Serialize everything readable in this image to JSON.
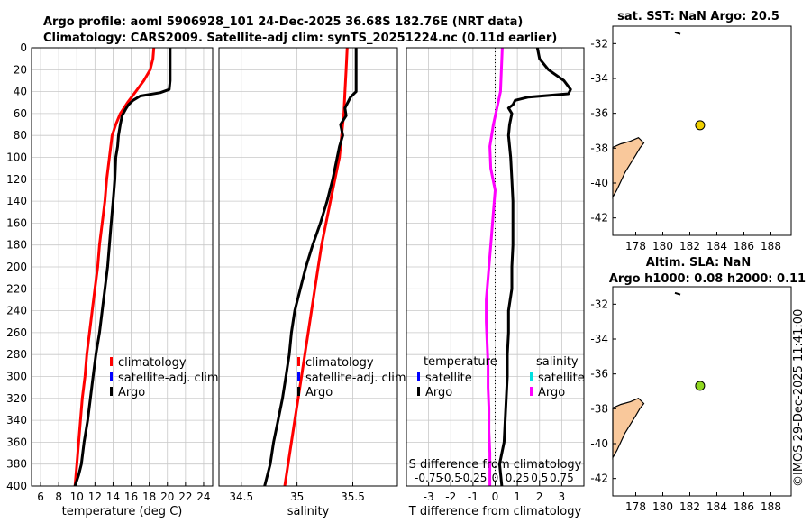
{
  "header": {
    "line1": "Argo profile: aoml 5906928_101 24-Dec-2025 36.68S 182.76E (NRT data)",
    "line2": "Climatology: CARS2009. Satellite-adj clim: synTS_20251224.nc (0.11d earlier)"
  },
  "colors": {
    "climatology": "#ff0000",
    "satellite_adj": "#0000ff",
    "argo": "#000000",
    "satellite_s": "#00e0e0",
    "salinity_diff": "#ff00ff",
    "land": "#f9c89b",
    "marker_sst": "#f0d000",
    "marker_sla": "#90d820"
  },
  "chart_data": [
    {
      "type": "line",
      "name": "temperature",
      "xlabel": "temperature (deg C)",
      "ylabel": "",
      "xlim": [
        5,
        25
      ],
      "ylim": [
        400,
        0
      ],
      "xticks": [
        "6",
        "8",
        "10",
        "12",
        "14",
        "16",
        "18",
        "20",
        "22",
        "24"
      ],
      "xtick_values": [
        6,
        8,
        10,
        12,
        14,
        16,
        18,
        20,
        22,
        24
      ],
      "yticks": [
        "0",
        "20",
        "40",
        "60",
        "80",
        "100",
        "120",
        "140",
        "160",
        "180",
        "200",
        "220",
        "240",
        "260",
        "280",
        "300",
        "320",
        "340",
        "360",
        "380",
        "400"
      ],
      "ytick_values": [
        0,
        20,
        40,
        60,
        80,
        100,
        120,
        140,
        160,
        180,
        200,
        220,
        240,
        260,
        280,
        300,
        320,
        340,
        360,
        380,
        400
      ],
      "legend": [
        "climatology",
        "satellite-adj. clim",
        "Argo"
      ],
      "series": [
        {
          "name": "climatology",
          "points": [
            [
              18.5,
              0
            ],
            [
              18.4,
              10
            ],
            [
              18.1,
              20
            ],
            [
              17.4,
              30
            ],
            [
              16.5,
              40
            ],
            [
              15.6,
              50
            ],
            [
              14.8,
              60
            ],
            [
              14.3,
              70
            ],
            [
              13.9,
              80
            ],
            [
              13.6,
              100
            ],
            [
              13.3,
              120
            ],
            [
              13.1,
              140
            ],
            [
              12.8,
              160
            ],
            [
              12.5,
              180
            ],
            [
              12.3,
              200
            ],
            [
              12.0,
              220
            ],
            [
              11.7,
              240
            ],
            [
              11.4,
              260
            ],
            [
              11.1,
              280
            ],
            [
              10.9,
              300
            ],
            [
              10.6,
              320
            ],
            [
              10.4,
              340
            ],
            [
              10.2,
              360
            ],
            [
              10.0,
              380
            ],
            [
              9.8,
              400
            ]
          ]
        },
        {
          "name": "Argo",
          "points": [
            [
              20.3,
              0
            ],
            [
              20.3,
              15
            ],
            [
              20.3,
              30
            ],
            [
              20.2,
              38
            ],
            [
              19.2,
              41
            ],
            [
              17.0,
              44
            ],
            [
              16.2,
              48
            ],
            [
              15.7,
              52
            ],
            [
              15.4,
              56
            ],
            [
              15.0,
              62
            ],
            [
              14.8,
              70
            ],
            [
              14.6,
              80
            ],
            [
              14.5,
              90
            ],
            [
              14.3,
              100
            ],
            [
              14.2,
              120
            ],
            [
              14.0,
              140
            ],
            [
              13.8,
              160
            ],
            [
              13.6,
              180
            ],
            [
              13.4,
              200
            ],
            [
              13.1,
              220
            ],
            [
              12.8,
              240
            ],
            [
              12.5,
              260
            ],
            [
              12.1,
              280
            ],
            [
              11.8,
              300
            ],
            [
              11.5,
              320
            ],
            [
              11.2,
              340
            ],
            [
              10.8,
              360
            ],
            [
              10.5,
              380
            ],
            [
              10.2,
              390
            ],
            [
              9.8,
              400
            ]
          ]
        }
      ]
    },
    {
      "type": "line",
      "name": "salinity",
      "xlabel": "salinity",
      "ylabel": "",
      "xlim": [
        34.3,
        35.9
      ],
      "ylim": [
        400,
        0
      ],
      "xticks": [
        "34.5",
        "35",
        "35.5"
      ],
      "xtick_values": [
        34.5,
        35.0,
        35.5
      ],
      "legend": [
        "climatology",
        "satellite-adj. clim",
        "Argo"
      ],
      "series": [
        {
          "name": "climatology",
          "points": [
            [
              35.45,
              0
            ],
            [
              35.44,
              20
            ],
            [
              35.43,
              40
            ],
            [
              35.42,
              60
            ],
            [
              35.4,
              80
            ],
            [
              35.38,
              100
            ],
            [
              35.34,
              120
            ],
            [
              35.3,
              140
            ],
            [
              35.26,
              160
            ],
            [
              35.22,
              180
            ],
            [
              35.19,
              200
            ],
            [
              35.16,
              220
            ],
            [
              35.13,
              240
            ],
            [
              35.1,
              260
            ],
            [
              35.07,
              280
            ],
            [
              35.04,
              300
            ],
            [
              35.01,
              320
            ],
            [
              34.98,
              340
            ],
            [
              34.95,
              360
            ],
            [
              34.92,
              380
            ],
            [
              34.89,
              400
            ]
          ]
        },
        {
          "name": "Argo",
          "points": [
            [
              35.53,
              0
            ],
            [
              35.53,
              30
            ],
            [
              35.53,
              40
            ],
            [
              35.48,
              45
            ],
            [
              35.43,
              55
            ],
            [
              35.44,
              62
            ],
            [
              35.39,
              70
            ],
            [
              35.41,
              80
            ],
            [
              35.38,
              90
            ],
            [
              35.36,
              100
            ],
            [
              35.32,
              120
            ],
            [
              35.27,
              140
            ],
            [
              35.21,
              160
            ],
            [
              35.14,
              180
            ],
            [
              35.08,
              200
            ],
            [
              35.03,
              220
            ],
            [
              34.98,
              240
            ],
            [
              34.95,
              260
            ],
            [
              34.93,
              280
            ],
            [
              34.9,
              300
            ],
            [
              34.87,
              320
            ],
            [
              34.83,
              340
            ],
            [
              34.79,
              360
            ],
            [
              34.76,
              380
            ],
            [
              34.71,
              400
            ]
          ]
        }
      ]
    },
    {
      "type": "line",
      "name": "difference",
      "xlabel": "T difference from climatology",
      "top_xlabel": "S difference from climatology",
      "xlim": [
        -4,
        4
      ],
      "ylim": [
        400,
        0
      ],
      "xticks": [
        "-3",
        "-2",
        "-1",
        "0",
        "1",
        "2",
        "3"
      ],
      "xtick_values": [
        -3,
        -2,
        -1,
        0,
        1,
        2,
        3
      ],
      "top_xticks": [
        "-0.75",
        "-0.5",
        "-0.25",
        "0",
        "0.25",
        "0.5",
        "0.75"
      ],
      "top_xtick_values": [
        -0.75,
        -0.5,
        -0.25,
        0,
        0.25,
        0.5,
        0.75
      ],
      "legend_temperature_title": "temperature",
      "legend_salinity_title": "salinity",
      "legend_temperature": [
        "satellite",
        "Argo"
      ],
      "legend_salinity": [
        "satellite",
        "Argo"
      ],
      "series": [
        {
          "name": "T difference (Argo)",
          "points": [
            [
              1.9,
              0
            ],
            [
              2.0,
              10
            ],
            [
              2.4,
              20
            ],
            [
              3.1,
              30
            ],
            [
              3.4,
              38
            ],
            [
              3.3,
              42
            ],
            [
              1.5,
              45
            ],
            [
              0.9,
              48
            ],
            [
              0.8,
              52
            ],
            [
              0.6,
              55
            ],
            [
              0.75,
              60
            ],
            [
              0.65,
              70
            ],
            [
              0.6,
              80
            ],
            [
              0.7,
              100
            ],
            [
              0.75,
              120
            ],
            [
              0.8,
              140
            ],
            [
              0.8,
              160
            ],
            [
              0.8,
              180
            ],
            [
              0.75,
              200
            ],
            [
              0.75,
              220
            ],
            [
              0.6,
              240
            ],
            [
              0.6,
              260
            ],
            [
              0.55,
              280
            ],
            [
              0.55,
              300
            ],
            [
              0.5,
              320
            ],
            [
              0.45,
              340
            ],
            [
              0.4,
              360
            ],
            [
              0.2,
              380
            ],
            [
              0.3,
              400
            ]
          ]
        },
        {
          "name": "S difference (Argo)",
          "points": [
            [
              0.08,
              0
            ],
            [
              0.07,
              20
            ],
            [
              0.06,
              40
            ],
            [
              0.02,
              55
            ],
            [
              -0.02,
              70
            ],
            [
              -0.06,
              90
            ],
            [
              -0.05,
              110
            ],
            [
              0.0,
              130
            ],
            [
              -0.02,
              150
            ],
            [
              -0.04,
              170
            ],
            [
              -0.06,
              190
            ],
            [
              -0.08,
              210
            ],
            [
              -0.1,
              230
            ],
            [
              -0.1,
              250
            ],
            [
              -0.09,
              270
            ],
            [
              -0.08,
              290
            ],
            [
              -0.08,
              310
            ],
            [
              -0.07,
              330
            ],
            [
              -0.07,
              350
            ],
            [
              -0.06,
              370
            ],
            [
              -0.06,
              400
            ]
          ]
        }
      ]
    },
    {
      "type": "scatter",
      "name": "sst_map",
      "title": "sat. SST: NaN Argo: 20.5",
      "xlim": [
        176.3,
        189.5
      ],
      "ylim": [
        -43,
        -31
      ],
      "xticks": [
        "178",
        "180",
        "182",
        "184",
        "186",
        "188"
      ],
      "xtick_values": [
        178,
        180,
        182,
        184,
        186,
        188
      ],
      "yticks": [
        "-32",
        "-34",
        "-36",
        "-38",
        "-40",
        "-42"
      ],
      "ytick_values": [
        -32,
        -34,
        -36,
        -38,
        -40,
        -42
      ],
      "points": [
        {
          "lon": 182.76,
          "lat": -36.68
        }
      ]
    },
    {
      "type": "scatter",
      "name": "sla_map",
      "title": "Altim. SLA: NaN",
      "subtitle": "Argo h1000: 0.08 h2000: 0.11",
      "xlim": [
        176.3,
        189.5
      ],
      "ylim": [
        -43,
        -31
      ],
      "xticks": [
        "178",
        "180",
        "182",
        "184",
        "186",
        "188"
      ],
      "xtick_values": [
        178,
        180,
        182,
        184,
        186,
        188
      ],
      "yticks": [
        "-32",
        "-34",
        "-36",
        "-38",
        "-40",
        "-42"
      ],
      "ytick_values": [
        -32,
        -34,
        -36,
        -38,
        -40,
        -42
      ],
      "points": [
        {
          "lon": 182.76,
          "lat": -36.68
        }
      ]
    }
  ],
  "watermark": "©IMOS 29-Dec-2025 11:41:00"
}
